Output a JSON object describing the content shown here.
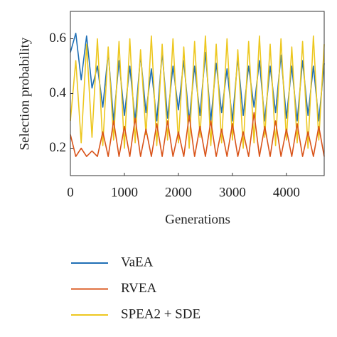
{
  "chart_data": {
    "type": "line",
    "x_label": "Generations",
    "y_label": "Selection probability",
    "x": [
      0,
      100,
      200,
      300,
      400,
      500,
      600,
      700,
      800,
      900,
      1000,
      1100,
      1200,
      1300,
      1400,
      1500,
      1600,
      1700,
      1800,
      1900,
      2000,
      2100,
      2200,
      2300,
      2400,
      2500,
      2600,
      2700,
      2800,
      2900,
      3000,
      3100,
      3200,
      3300,
      3400,
      3500,
      3600,
      3700,
      3800,
      3900,
      4000,
      4100,
      4200,
      4300,
      4400,
      4500,
      4600,
      4700
    ],
    "xlim": [
      0,
      4700
    ],
    "xticks": [
      0,
      1000,
      2000,
      3000,
      4000
    ],
    "ylim": [
      0.1,
      0.7
    ],
    "yticks": [
      0.2,
      0.4,
      0.6
    ],
    "series": [
      {
        "name": "VaEA",
        "color": "#1f6fb5",
        "values": [
          0.55,
          0.62,
          0.45,
          0.61,
          0.42,
          0.5,
          0.35,
          0.55,
          0.3,
          0.52,
          0.32,
          0.5,
          0.3,
          0.54,
          0.33,
          0.49,
          0.3,
          0.55,
          0.31,
          0.5,
          0.34,
          0.52,
          0.3,
          0.5,
          0.32,
          0.55,
          0.3,
          0.51,
          0.33,
          0.49,
          0.3,
          0.53,
          0.32,
          0.5,
          0.35,
          0.52,
          0.3,
          0.5,
          0.33,
          0.54,
          0.31,
          0.5,
          0.3,
          0.52,
          0.32,
          0.5,
          0.3,
          0.51
        ]
      },
      {
        "name": "RVEA",
        "color": "#d95319",
        "values": [
          0.25,
          0.17,
          0.2,
          0.17,
          0.19,
          0.17,
          0.26,
          0.17,
          0.3,
          0.17,
          0.28,
          0.17,
          0.31,
          0.17,
          0.27,
          0.17,
          0.29,
          0.17,
          0.3,
          0.17,
          0.26,
          0.17,
          0.32,
          0.17,
          0.28,
          0.17,
          0.3,
          0.17,
          0.27,
          0.17,
          0.29,
          0.17,
          0.26,
          0.17,
          0.33,
          0.17,
          0.28,
          0.17,
          0.3,
          0.17,
          0.27,
          0.17,
          0.29,
          0.17,
          0.26,
          0.17,
          0.28,
          0.17
        ]
      },
      {
        "name": "SPEA2 + SDE",
        "color": "#edc71f",
        "values": [
          0.3,
          0.52,
          0.22,
          0.58,
          0.24,
          0.6,
          0.21,
          0.57,
          0.23,
          0.59,
          0.2,
          0.6,
          0.22,
          0.56,
          0.25,
          0.61,
          0.21,
          0.58,
          0.23,
          0.6,
          0.22,
          0.57,
          0.2,
          0.59,
          0.24,
          0.61,
          0.21,
          0.58,
          0.22,
          0.6,
          0.23,
          0.56,
          0.2,
          0.59,
          0.22,
          0.61,
          0.24,
          0.58,
          0.21,
          0.6,
          0.23,
          0.57,
          0.22,
          0.59,
          0.2,
          0.61,
          0.23,
          0.58
        ]
      }
    ],
    "draw_order": [
      "VaEA",
      "SPEA2 + SDE",
      "RVEA"
    ]
  }
}
